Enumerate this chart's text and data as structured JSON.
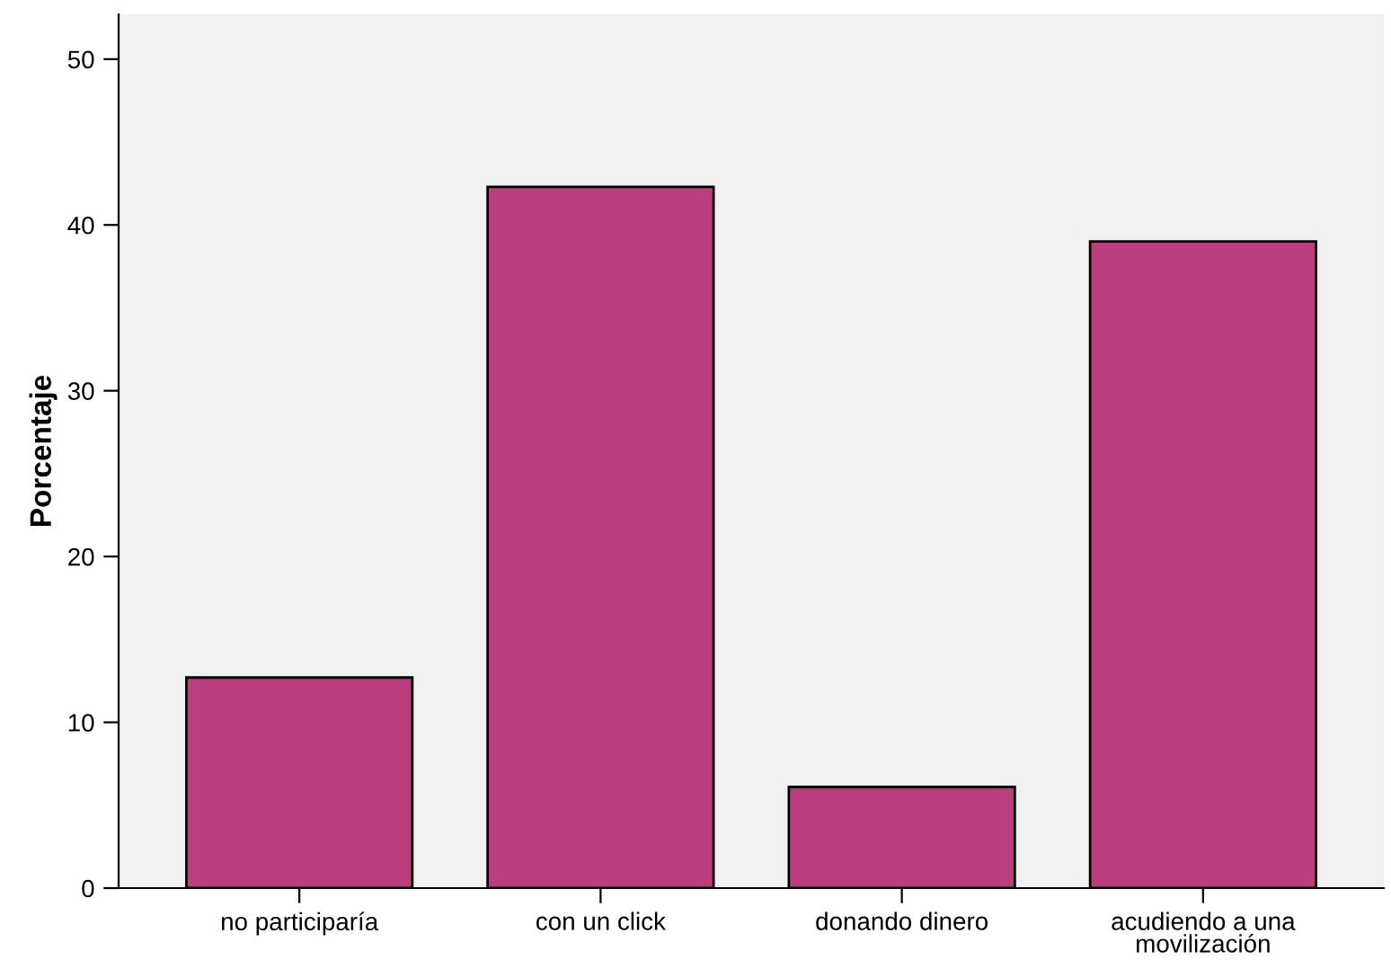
{
  "chart_data": {
    "type": "bar",
    "ylabel": "Porcentaje",
    "categories": [
      "no participaría",
      "con un click",
      "donando dinero",
      "acudiendo a una\nmovilización"
    ],
    "values": [
      12.7,
      42.3,
      6.1,
      39.0
    ],
    "color": "#bc3f7d",
    "ylim": [
      0,
      52.7
    ],
    "yticks": [
      0,
      10,
      20,
      30,
      40,
      50
    ],
    "grid": false
  }
}
